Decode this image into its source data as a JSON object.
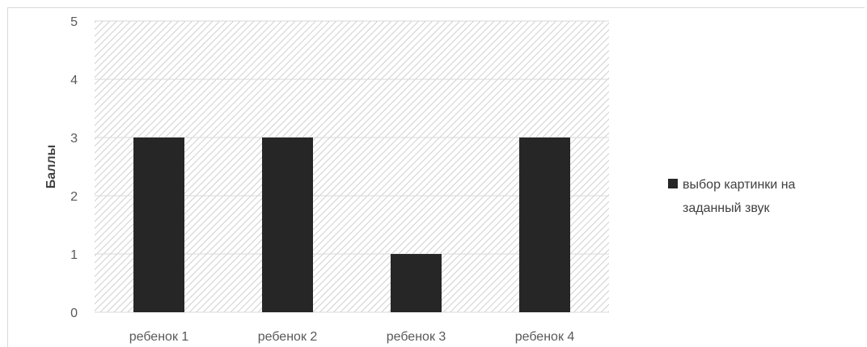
{
  "chart_data": {
    "type": "bar",
    "title": "",
    "xlabel": "",
    "ylabel": "Баллы",
    "ylim": [
      0,
      5
    ],
    "yticks": [
      0,
      1,
      2,
      3,
      4,
      5
    ],
    "grid": true,
    "legend_position": "right",
    "categories": [
      "ребенок 1",
      "ребенок 2",
      "ребенок 3",
      "ребенок 4"
    ],
    "series": [
      {
        "name": "выбор картинки на заданный звук",
        "values": [
          3,
          3,
          1,
          3
        ],
        "color": "#262626"
      }
    ]
  },
  "legend": {
    "line1": "выбор картинки на",
    "line2": "заданный звук"
  },
  "colors": {
    "bar": "#262626",
    "grid": "#d9d9d9",
    "hatch": "#d0d0d0",
    "axis_text": "#595959"
  }
}
